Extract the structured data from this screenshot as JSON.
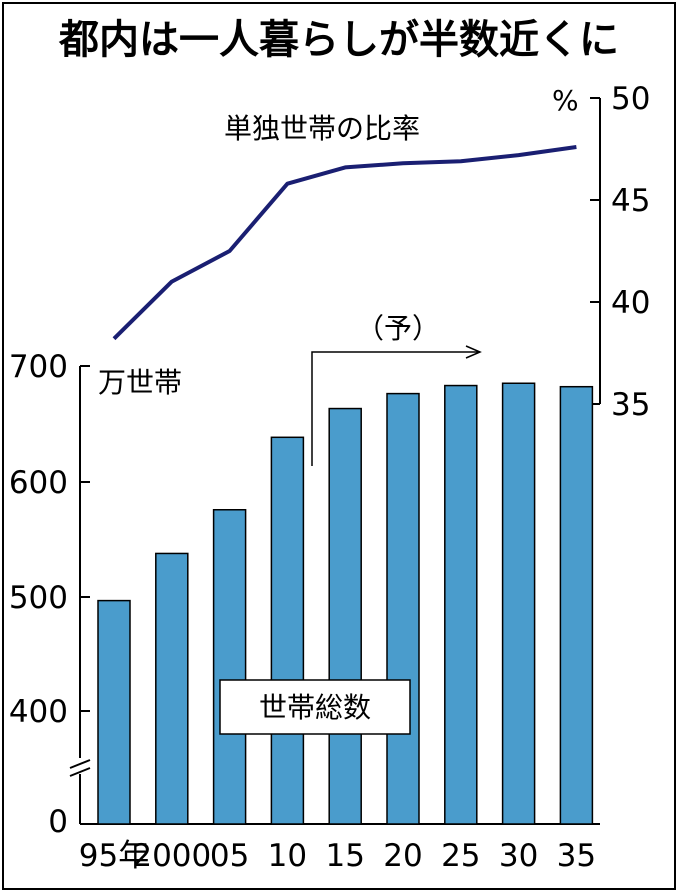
{
  "chart_data": {
    "title": "都内は一人暮らしが半数近くに",
    "categories": [
      "95年",
      "2000",
      "05",
      "10",
      "15",
      "20",
      "25",
      "30",
      "35"
    ],
    "bar_series": {
      "name": "世帯総数",
      "unit": "万世帯",
      "values": [
        496,
        537,
        575,
        638,
        663,
        676,
        683,
        685,
        682
      ],
      "ylim": [
        400,
        700
      ],
      "ticks": [
        "700",
        "600",
        "500",
        "400",
        "0"
      ],
      "color": "#4a9ccc"
    },
    "line_series": {
      "name": "単独世帯の比率",
      "unit": "%",
      "values": [
        38.2,
        41.0,
        42.5,
        45.8,
        46.6,
        46.8,
        46.9,
        47.2,
        47.6
      ],
      "ylim": [
        35,
        50
      ],
      "ticks": [
        "50",
        "45",
        "40",
        "35"
      ],
      "color": "#1a1f72"
    },
    "forecast_label": "（予）",
    "axis_break": true,
    "grid": false
  }
}
